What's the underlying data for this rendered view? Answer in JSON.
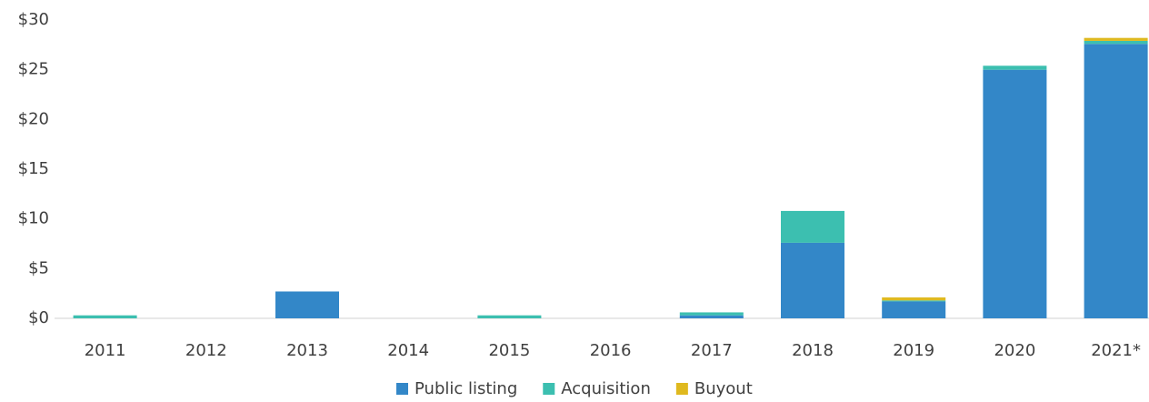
{
  "chart_data": {
    "type": "stacked_bar",
    "categories": [
      "2011",
      "2012",
      "2013",
      "2014",
      "2015",
      "2016",
      "2017",
      "2018",
      "2019",
      "2020",
      "2021*"
    ],
    "series": [
      {
        "name": "Public listing",
        "color": "#3387c8",
        "values": [
          0,
          0,
          2.7,
          0,
          0,
          0,
          0.3,
          7.6,
          1.7,
          25.0,
          27.6
        ]
      },
      {
        "name": "Acquisition",
        "color": "#3cbfb0",
        "values": [
          0.3,
          0,
          0,
          0,
          0.3,
          0,
          0.3,
          3.2,
          0.1,
          0.4,
          0.3
        ]
      },
      {
        "name": "Buyout",
        "color": "#dfb91f",
        "values": [
          0,
          0,
          0,
          0,
          0,
          0,
          0,
          0,
          0.3,
          0,
          0.3
        ]
      }
    ],
    "ylim": [
      0,
      30
    ],
    "yticks": [
      {
        "value": 0,
        "label": "$0"
      },
      {
        "value": 5,
        "label": "$5"
      },
      {
        "value": 10,
        "label": "$10"
      },
      {
        "value": 15,
        "label": "$15"
      },
      {
        "value": 20,
        "label": "$20"
      },
      {
        "value": 25,
        "label": "$25"
      },
      {
        "value": 30,
        "label": "$30"
      }
    ],
    "grid": false
  }
}
